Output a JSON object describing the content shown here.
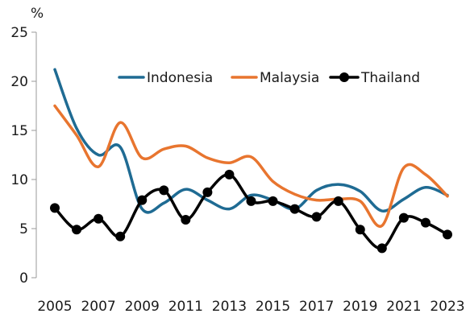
{
  "chart_data": {
    "type": "line",
    "ylabel": "%",
    "ylim": [
      0,
      25
    ],
    "yticks": [
      0,
      5,
      10,
      15,
      20,
      25
    ],
    "x": [
      2005,
      2006,
      2007,
      2008,
      2009,
      2010,
      2011,
      2012,
      2013,
      2014,
      2015,
      2016,
      2017,
      2018,
      2019,
      2020,
      2021,
      2022,
      2023
    ],
    "xticks": [
      "2005",
      "2007",
      "2009",
      "2011",
      "2013",
      "2015",
      "2017",
      "2019",
      "2021",
      "2023"
    ],
    "legend_position": "top-right",
    "smooth": true,
    "series": [
      {
        "name": "Indonesia",
        "color": "#1f6b93",
        "markers": false,
        "values": [
          21.2,
          15.2,
          12.5,
          13.3,
          7.0,
          7.6,
          9.0,
          7.9,
          7.0,
          8.4,
          7.9,
          7.0,
          8.9,
          9.5,
          8.8,
          6.8,
          8.0,
          9.2,
          8.4
        ]
      },
      {
        "name": "Malaysia",
        "color": "#e8752f",
        "markers": false,
        "values": [
          17.5,
          14.5,
          11.3,
          15.8,
          12.2,
          13.1,
          13.4,
          12.2,
          11.7,
          12.3,
          9.8,
          8.5,
          7.9,
          8.0,
          7.8,
          5.3,
          11.2,
          10.5,
          8.3
        ]
      },
      {
        "name": "Thailand",
        "color": "#000000",
        "markers": true,
        "values": [
          7.1,
          4.9,
          6.0,
          4.2,
          7.9,
          8.9,
          5.9,
          8.7,
          10.5,
          7.8,
          7.8,
          7.0,
          6.2,
          7.8,
          4.9,
          3.0,
          6.1,
          5.6,
          4.4
        ]
      }
    ]
  }
}
